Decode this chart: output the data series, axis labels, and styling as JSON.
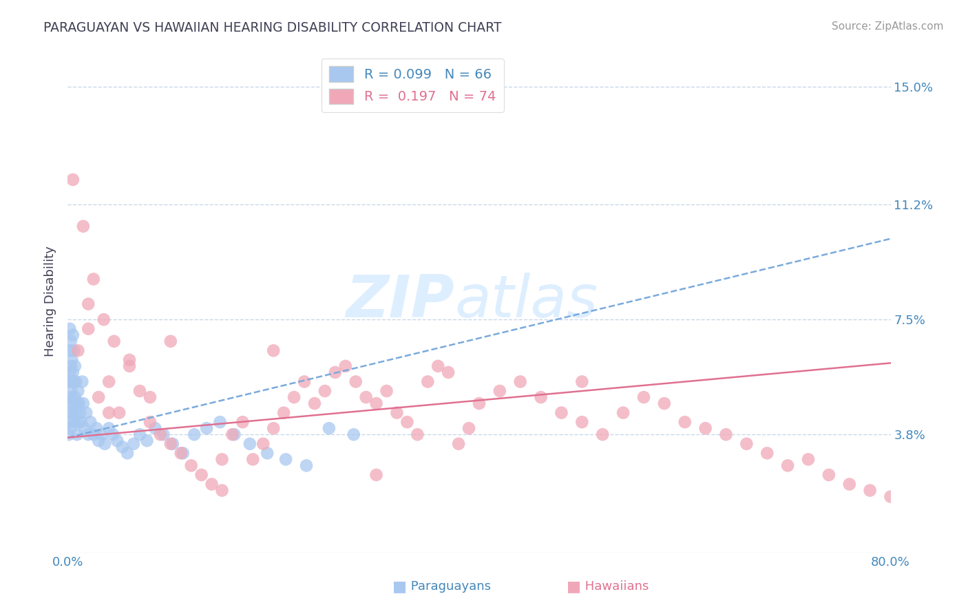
{
  "title": "PARAGUAYAN VS HAWAIIAN HEARING DISABILITY CORRELATION CHART",
  "source": "Source: ZipAtlas.com",
  "ylabel": "Hearing Disability",
  "ytick_labels": [
    "3.8%",
    "7.5%",
    "11.2%",
    "15.0%"
  ],
  "ytick_values": [
    0.038,
    0.075,
    0.112,
    0.15
  ],
  "xlim": [
    0.0,
    0.8
  ],
  "ylim": [
    0.0,
    0.162
  ],
  "paraguayan_R": 0.099,
  "paraguayan_N": 66,
  "hawaiian_R": 0.197,
  "hawaiian_N": 74,
  "paraguayan_color": "#a8c8f0",
  "hawaiian_color": "#f0a8b8",
  "paraguayan_line_color": "#7aaadd",
  "hawaiian_line_color": "#e07090",
  "background_color": "#ffffff",
  "grid_color": "#c8d8e8",
  "title_color": "#404055",
  "axis_label_color": "#4488bb",
  "legend_label_par_color": "#4488bb",
  "legend_label_haw_color": "#e07090",
  "watermark_color": "#ddeeff",
  "paraguayan_x": [
    0.001,
    0.001,
    0.001,
    0.001,
    0.002,
    0.002,
    0.002,
    0.002,
    0.002,
    0.003,
    0.003,
    0.003,
    0.003,
    0.004,
    0.004,
    0.004,
    0.005,
    0.005,
    0.005,
    0.006,
    0.006,
    0.006,
    0.007,
    0.007,
    0.008,
    0.008,
    0.009,
    0.009,
    0.01,
    0.01,
    0.011,
    0.012,
    0.013,
    0.014,
    0.015,
    0.016,
    0.018,
    0.02,
    0.022,
    0.025,
    0.028,
    0.03,
    0.033,
    0.036,
    0.04,
    0.044,
    0.048,
    0.053,
    0.058,
    0.064,
    0.07,
    0.077,
    0.085,
    0.093,
    0.102,
    0.112,
    0.123,
    0.135,
    0.148,
    0.162,
    0.177,
    0.194,
    0.212,
    0.232,
    0.254,
    0.278
  ],
  "paraguayan_y": [
    0.055,
    0.048,
    0.042,
    0.038,
    0.072,
    0.065,
    0.058,
    0.05,
    0.045,
    0.068,
    0.06,
    0.052,
    0.04,
    0.062,
    0.055,
    0.048,
    0.07,
    0.058,
    0.045,
    0.065,
    0.055,
    0.042,
    0.06,
    0.05,
    0.055,
    0.045,
    0.048,
    0.038,
    0.052,
    0.042,
    0.048,
    0.045,
    0.042,
    0.055,
    0.048,
    0.04,
    0.045,
    0.038,
    0.042,
    0.038,
    0.04,
    0.036,
    0.038,
    0.035,
    0.04,
    0.038,
    0.036,
    0.034,
    0.032,
    0.035,
    0.038,
    0.036,
    0.04,
    0.038,
    0.035,
    0.032,
    0.038,
    0.04,
    0.042,
    0.038,
    0.035,
    0.032,
    0.03,
    0.028,
    0.04,
    0.038
  ],
  "hawaiian_x": [
    0.005,
    0.01,
    0.015,
    0.02,
    0.025,
    0.03,
    0.035,
    0.04,
    0.045,
    0.05,
    0.06,
    0.07,
    0.08,
    0.09,
    0.1,
    0.11,
    0.12,
    0.13,
    0.14,
    0.15,
    0.16,
    0.17,
    0.18,
    0.19,
    0.2,
    0.21,
    0.22,
    0.23,
    0.24,
    0.25,
    0.26,
    0.27,
    0.28,
    0.29,
    0.3,
    0.31,
    0.32,
    0.33,
    0.34,
    0.35,
    0.36,
    0.37,
    0.38,
    0.39,
    0.4,
    0.42,
    0.44,
    0.46,
    0.48,
    0.5,
    0.52,
    0.54,
    0.56,
    0.58,
    0.6,
    0.62,
    0.64,
    0.66,
    0.68,
    0.7,
    0.72,
    0.74,
    0.76,
    0.78,
    0.8,
    0.02,
    0.04,
    0.06,
    0.08,
    0.1,
    0.15,
    0.2,
    0.3,
    0.5
  ],
  "hawaiian_y": [
    0.12,
    0.065,
    0.105,
    0.072,
    0.088,
    0.05,
    0.075,
    0.055,
    0.068,
    0.045,
    0.062,
    0.052,
    0.042,
    0.038,
    0.035,
    0.032,
    0.028,
    0.025,
    0.022,
    0.02,
    0.038,
    0.042,
    0.03,
    0.035,
    0.04,
    0.045,
    0.05,
    0.055,
    0.048,
    0.052,
    0.058,
    0.06,
    0.055,
    0.05,
    0.048,
    0.052,
    0.045,
    0.042,
    0.038,
    0.055,
    0.06,
    0.058,
    0.035,
    0.04,
    0.048,
    0.052,
    0.055,
    0.05,
    0.045,
    0.042,
    0.038,
    0.045,
    0.05,
    0.048,
    0.042,
    0.04,
    0.038,
    0.035,
    0.032,
    0.028,
    0.03,
    0.025,
    0.022,
    0.02,
    0.018,
    0.08,
    0.045,
    0.06,
    0.05,
    0.068,
    0.03,
    0.065,
    0.025,
    0.055
  ]
}
